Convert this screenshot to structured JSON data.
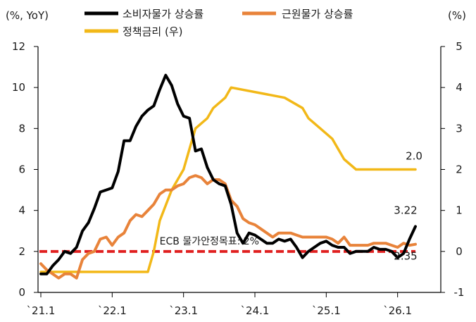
{
  "chart_data": {
    "type": "line",
    "ylabel_left": "(%, YoY)",
    "ylabel_right": "(%)",
    "y_left_ticks": [
      "0",
      "2",
      "4",
      "6",
      "8",
      "10",
      "12"
    ],
    "y_right_ticks": [
      "-1",
      "0",
      "1",
      "2",
      "3",
      "4",
      "5"
    ],
    "x_ticks": [
      "`21.1",
      "`22.1",
      "`23.1",
      "`24.1",
      "`25.1",
      "`26.1"
    ],
    "ylim_left": [
      0,
      12
    ],
    "ylim_right": [
      -1,
      5
    ],
    "xlim": [
      "2021-01",
      "2026-04"
    ],
    "grid": false,
    "legend_position": "top",
    "reference_line": {
      "label": "ECB 물가안정목표: 2%",
      "value": 2,
      "color": "#e02020"
    },
    "annotations": [
      {
        "text": "3.22",
        "series": "소비자물가 상승률"
      },
      {
        "text": "2.35",
        "series": "근원물가 상승률"
      },
      {
        "text": "2.0",
        "series": "정책금리 (우)"
      }
    ],
    "series": [
      {
        "name": "소비자물가 상승률",
        "axis": "left",
        "color": "#000000",
        "points": [
          [
            "2021-01",
            0.9
          ],
          [
            "2021-02",
            0.9
          ],
          [
            "2021-03",
            1.3
          ],
          [
            "2021-04",
            1.6
          ],
          [
            "2021-05",
            2.0
          ],
          [
            "2021-06",
            1.9
          ],
          [
            "2021-07",
            2.2
          ],
          [
            "2021-08",
            3.0
          ],
          [
            "2021-09",
            3.4
          ],
          [
            "2021-10",
            4.1
          ],
          [
            "2021-11",
            4.9
          ],
          [
            "2021-12",
            5.0
          ],
          [
            "2022-01",
            5.1
          ],
          [
            "2022-02",
            5.9
          ],
          [
            "2022-03",
            7.4
          ],
          [
            "2022-04",
            7.4
          ],
          [
            "2022-05",
            8.1
          ],
          [
            "2022-06",
            8.6
          ],
          [
            "2022-07",
            8.9
          ],
          [
            "2022-08",
            9.1
          ],
          [
            "2022-09",
            9.9
          ],
          [
            "2022-10",
            10.6
          ],
          [
            "2022-11",
            10.1
          ],
          [
            "2022-12",
            9.2
          ],
          [
            "2023-01",
            8.6
          ],
          [
            "2023-02",
            8.5
          ],
          [
            "2023-03",
            6.9
          ],
          [
            "2023-04",
            7.0
          ],
          [
            "2023-05",
            6.1
          ],
          [
            "2023-06",
            5.5
          ],
          [
            "2023-07",
            5.3
          ],
          [
            "2023-08",
            5.2
          ],
          [
            "2023-09",
            4.3
          ],
          [
            "2023-10",
            2.9
          ],
          [
            "2023-11",
            2.4
          ],
          [
            "2023-12",
            2.9
          ],
          [
            "2024-01",
            2.8
          ],
          [
            "2024-02",
            2.6
          ],
          [
            "2024-03",
            2.4
          ],
          [
            "2024-04",
            2.4
          ],
          [
            "2024-05",
            2.6
          ],
          [
            "2024-06",
            2.5
          ],
          [
            "2024-07",
            2.6
          ],
          [
            "2024-08",
            2.2
          ],
          [
            "2024-09",
            1.7
          ],
          [
            "2024-10",
            2.0
          ],
          [
            "2024-11",
            2.2
          ],
          [
            "2024-12",
            2.4
          ],
          [
            "2025-01",
            2.5
          ],
          [
            "2025-02",
            2.3
          ],
          [
            "2025-03",
            2.2
          ],
          [
            "2025-04",
            2.2
          ],
          [
            "2025-05",
            1.9
          ],
          [
            "2025-06",
            2.0
          ],
          [
            "2025-07",
            2.0
          ],
          [
            "2025-08",
            2.0
          ],
          [
            "2025-09",
            2.2
          ],
          [
            "2025-10",
            2.1
          ],
          [
            "2025-11",
            2.1
          ],
          [
            "2025-12",
            2.0
          ],
          [
            "2026-01",
            1.7
          ],
          [
            "2026-02",
            1.9
          ],
          [
            "2026-03",
            2.6
          ],
          [
            "2026-04",
            3.22
          ]
        ]
      },
      {
        "name": "근원물가 상승률",
        "axis": "left",
        "color": "#e8833a",
        "points": [
          [
            "2021-01",
            1.4
          ],
          [
            "2021-02",
            1.1
          ],
          [
            "2021-03",
            0.9
          ],
          [
            "2021-04",
            0.7
          ],
          [
            "2021-05",
            0.9
          ],
          [
            "2021-06",
            0.9
          ],
          [
            "2021-07",
            0.7
          ],
          [
            "2021-08",
            1.6
          ],
          [
            "2021-09",
            1.9
          ],
          [
            "2021-10",
            2.0
          ],
          [
            "2021-11",
            2.6
          ],
          [
            "2021-12",
            2.7
          ],
          [
            "2022-01",
            2.3
          ],
          [
            "2022-02",
            2.7
          ],
          [
            "2022-03",
            2.9
          ],
          [
            "2022-04",
            3.5
          ],
          [
            "2022-05",
            3.8
          ],
          [
            "2022-06",
            3.7
          ],
          [
            "2022-07",
            4.0
          ],
          [
            "2022-08",
            4.3
          ],
          [
            "2022-09",
            4.8
          ],
          [
            "2022-10",
            5.0
          ],
          [
            "2022-11",
            5.0
          ],
          [
            "2022-12",
            5.2
          ],
          [
            "2023-01",
            5.3
          ],
          [
            "2023-02",
            5.6
          ],
          [
            "2023-03",
            5.7
          ],
          [
            "2023-04",
            5.6
          ],
          [
            "2023-05",
            5.3
          ],
          [
            "2023-06",
            5.5
          ],
          [
            "2023-07",
            5.5
          ],
          [
            "2023-08",
            5.3
          ],
          [
            "2023-09",
            4.5
          ],
          [
            "2023-10",
            4.2
          ],
          [
            "2023-11",
            3.6
          ],
          [
            "2023-12",
            3.4
          ],
          [
            "2024-01",
            3.3
          ],
          [
            "2024-02",
            3.1
          ],
          [
            "2024-03",
            2.9
          ],
          [
            "2024-04",
            2.7
          ],
          [
            "2024-05",
            2.9
          ],
          [
            "2024-06",
            2.9
          ],
          [
            "2024-07",
            2.9
          ],
          [
            "2024-08",
            2.8
          ],
          [
            "2024-09",
            2.7
          ],
          [
            "2024-10",
            2.7
          ],
          [
            "2024-11",
            2.7
          ],
          [
            "2024-12",
            2.7
          ],
          [
            "2025-01",
            2.7
          ],
          [
            "2025-02",
            2.6
          ],
          [
            "2025-03",
            2.4
          ],
          [
            "2025-04",
            2.7
          ],
          [
            "2025-05",
            2.3
          ],
          [
            "2025-06",
            2.3
          ],
          [
            "2025-07",
            2.3
          ],
          [
            "2025-08",
            2.3
          ],
          [
            "2025-09",
            2.4
          ],
          [
            "2025-10",
            2.4
          ],
          [
            "2025-11",
            2.4
          ],
          [
            "2025-12",
            2.3
          ],
          [
            "2026-01",
            2.2
          ],
          [
            "2026-02",
            2.4
          ],
          [
            "2026-03",
            2.3
          ],
          [
            "2026-04",
            2.35
          ]
        ]
      },
      {
        "name": "정책금리 (우)",
        "axis": "right",
        "color": "#f2b818",
        "points": [
          [
            "2021-01",
            -0.5
          ],
          [
            "2022-07",
            -0.5
          ],
          [
            "2022-08",
            0.0
          ],
          [
            "2022-09",
            0.75
          ],
          [
            "2022-11",
            1.5
          ],
          [
            "2023-01",
            2.0
          ],
          [
            "2023-02",
            2.5
          ],
          [
            "2023-03",
            3.0
          ],
          [
            "2023-05",
            3.25
          ],
          [
            "2023-06",
            3.5
          ],
          [
            "2023-08",
            3.75
          ],
          [
            "2023-09",
            4.0
          ],
          [
            "2024-06",
            3.75
          ],
          [
            "2024-09",
            3.5
          ],
          [
            "2024-10",
            3.25
          ],
          [
            "2024-12",
            3.0
          ],
          [
            "2025-02",
            2.75
          ],
          [
            "2025-03",
            2.5
          ],
          [
            "2025-04",
            2.25
          ],
          [
            "2025-06",
            2.0
          ],
          [
            "2026-04",
            2.0
          ]
        ]
      }
    ]
  }
}
